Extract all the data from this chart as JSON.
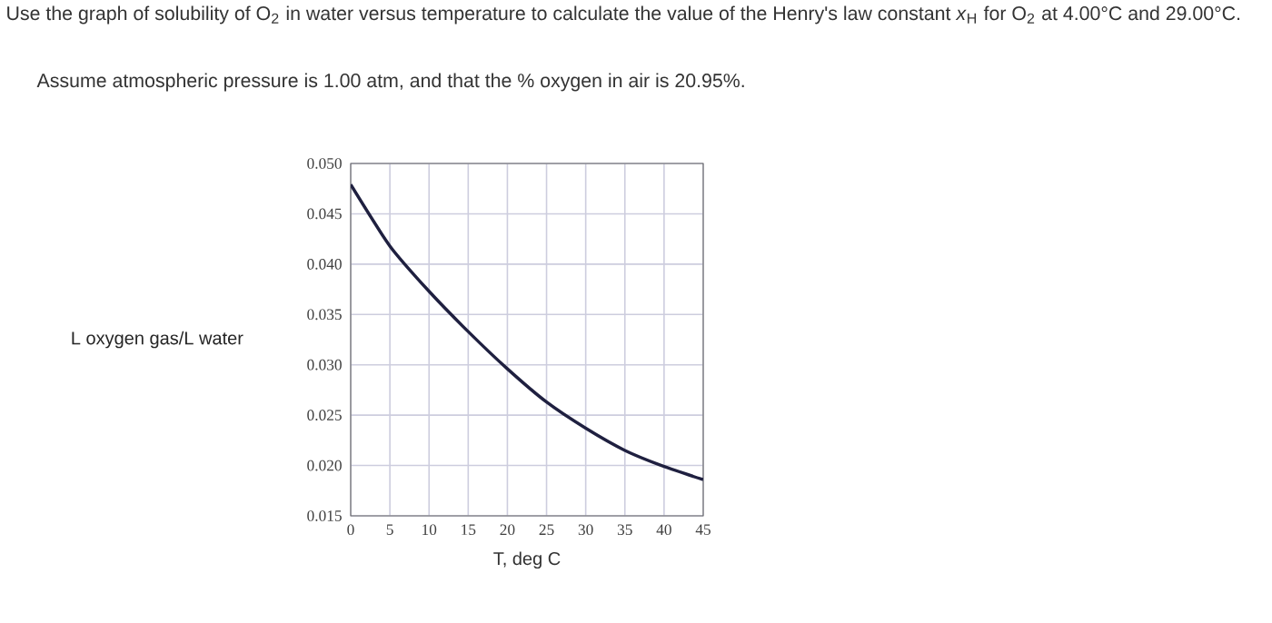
{
  "chart_data": {
    "type": "line",
    "title": "Use the graph of solubility of O$_{2}$ in water versus temperature to calculate the value of the Henry's law constant *x*$_{H}$ for O$_{2}$ at 4.00°C and 29.00°C.",
    "subtitle": "Assume atmospheric pressure is 1.00 atm, and that the % oxygen in air is 20.95%.",
    "xlabel": "T, deg C",
    "ylabel": "L oxygen gas/L water",
    "x": [
      0,
      5,
      10,
      15,
      20,
      25,
      30,
      35,
      40,
      45
    ],
    "series": [
      {
        "color": "#1f2040",
        "values": [
          0.0479,
          0.0418,
          0.0373,
          0.0333,
          0.0296,
          0.0263,
          0.0237,
          0.0215,
          0.0199,
          0.0186
        ]
      }
    ],
    "xlim": [
      0,
      45
    ],
    "ylim": [
      0.015,
      0.05
    ],
    "xticks": [
      0,
      5,
      10,
      15,
      20,
      25,
      30,
      35,
      40,
      45
    ],
    "yticks": [
      {
        "value": 0.015,
        "label": "0.015"
      },
      {
        "value": 0.02,
        "label": "0.020"
      },
      {
        "value": 0.025,
        "label": "0.025"
      },
      {
        "value": 0.03,
        "label": "0.030"
      },
      {
        "value": 0.035,
        "label": "0.035"
      },
      {
        "value": 0.04,
        "label": "0.040"
      },
      {
        "value": 0.045,
        "label": "0.045"
      },
      {
        "value": 0.05,
        "label": "0.050"
      }
    ],
    "grid": true,
    "marker": "none",
    "line_style": "solid"
  }
}
